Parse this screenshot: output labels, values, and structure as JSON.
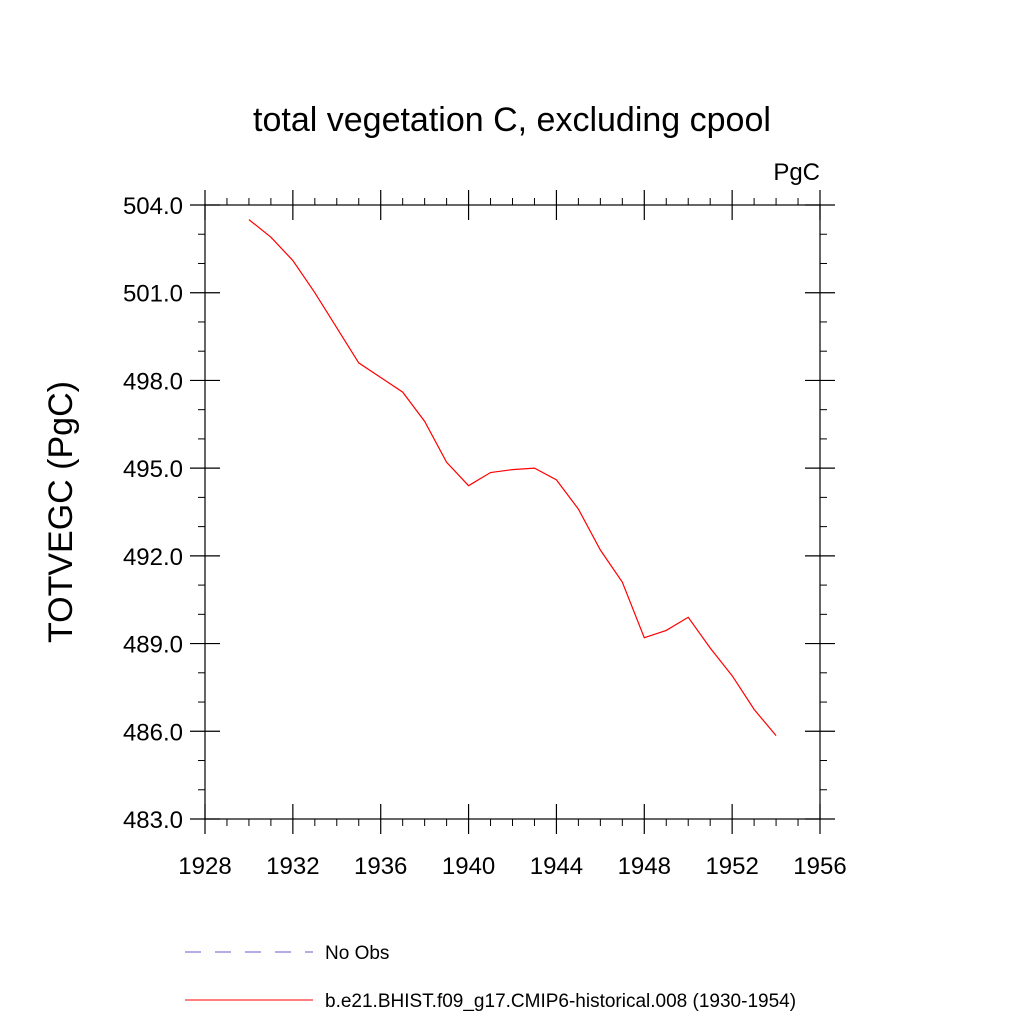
{
  "chart_data": {
    "type": "line",
    "title": "total vegetation C, excluding cpool",
    "units": "PgC",
    "ylabel": "TOTVEGC  (PgC)",
    "xlabel": "",
    "xlim": [
      1928,
      1956
    ],
    "ylim": [
      483.0,
      504.0
    ],
    "x_ticks": [
      1928,
      1932,
      1936,
      1940,
      1944,
      1948,
      1952,
      1956
    ],
    "x_tick_labels": [
      "1928",
      "1932",
      "1936",
      "1940",
      "1944",
      "1948",
      "1952",
      "1956"
    ],
    "y_ticks": [
      483.0,
      486.0,
      489.0,
      492.0,
      495.0,
      498.0,
      501.0,
      504.0
    ],
    "y_tick_labels": [
      "483.0",
      "486.0",
      "489.0",
      "492.0",
      "495.0",
      "498.0",
      "501.0",
      "504.0"
    ],
    "grid": false,
    "legend_position": "bottom",
    "series": [
      {
        "name": "b.e21.BHIST.f09_g17.CMIP6-historical.008 (1930-1954)",
        "color": "#ff0000",
        "dash": "solid",
        "x": [
          1930,
          1931,
          1932,
          1933,
          1934,
          1935,
          1936,
          1937,
          1938,
          1939,
          1940,
          1941,
          1942,
          1943,
          1944,
          1945,
          1946,
          1947,
          1948,
          1949,
          1950,
          1951,
          1952,
          1953,
          1954
        ],
        "y": [
          503.5,
          502.9,
          502.1,
          501.0,
          499.8,
          498.6,
          498.1,
          497.6,
          496.6,
          495.2,
          494.4,
          494.85,
          494.95,
          495.0,
          494.6,
          493.6,
          492.2,
          491.1,
          489.2,
          489.45,
          489.9,
          488.85,
          487.9,
          486.75,
          485.85
        ]
      }
    ],
    "legend": [
      {
        "label": "No Obs",
        "color": "#6a5acd",
        "dash": "dashed"
      },
      {
        "label": "b.e21.BHIST.f09_g17.CMIP6-historical.008 (1930-1954)",
        "color": "#ff0000",
        "dash": "solid"
      }
    ]
  }
}
